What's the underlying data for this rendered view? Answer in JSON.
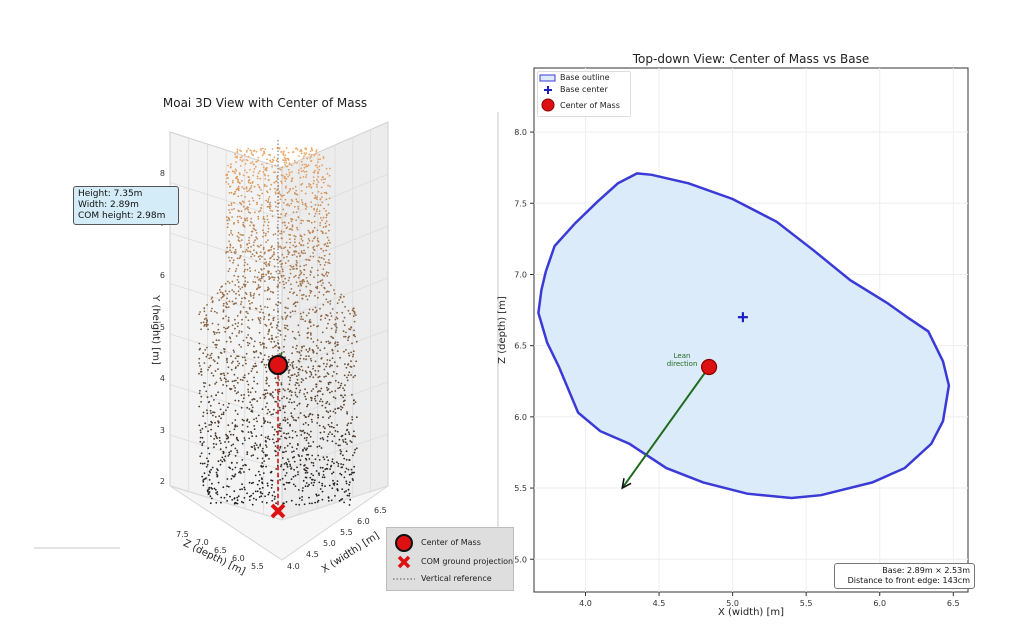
{
  "chart_data": [
    {
      "type": "scatter",
      "title": "Moai 3D View with Center of Mass",
      "xlabel": "X (width) [m]",
      "ylabel": "Y (height) [m]",
      "zlabel": "Z (depth) [m]",
      "x_ticks": [
        "4.0",
        "4.5",
        "5.0",
        "5.5",
        "6.0",
        "6.5"
      ],
      "z_ticks": [
        "7.5",
        "7.0",
        "6.5",
        "6.0",
        "5.5"
      ],
      "y_ticks": [
        "2",
        "3",
        "4",
        "5",
        "6",
        "7",
        "8"
      ],
      "ylim": [
        1.5,
        8.6
      ],
      "info": [
        "Height: 7.35m",
        "Width: 2.89m",
        "COM height: 2.98m"
      ],
      "legend": [
        "Center of Mass",
        "COM ground projection",
        "Vertical reference"
      ],
      "colors": {
        "points_top": "#f0a868",
        "points_bottom": "#1a1a1a",
        "com": "#dd1111",
        "reference": "#555555"
      }
    },
    {
      "type": "line",
      "title": "Top-down View: Center of Mass vs Base",
      "xlabel": "X (width) [m]",
      "ylabel": "Z (depth) [m]",
      "xlim": [
        3.65,
        6.6
      ],
      "ylim": [
        4.77,
        8.45
      ],
      "x_ticks": [
        4.0,
        4.5,
        5.0,
        5.5,
        6.0,
        6.5
      ],
      "y_ticks": [
        5.0,
        5.5,
        6.0,
        6.5,
        7.0,
        7.5,
        8.0
      ],
      "legend": [
        "Base outline",
        "Base center",
        "Center of Mass"
      ],
      "base_outline": [
        [
          4.35,
          7.71
        ],
        [
          4.45,
          7.7
        ],
        [
          4.7,
          7.64
        ],
        [
          5.0,
          7.53
        ],
        [
          5.3,
          7.37
        ],
        [
          5.55,
          7.17
        ],
        [
          5.8,
          6.96
        ],
        [
          6.05,
          6.8
        ],
        [
          6.2,
          6.69
        ],
        [
          6.33,
          6.6
        ],
        [
          6.43,
          6.39
        ],
        [
          6.47,
          6.22
        ],
        [
          6.43,
          5.97
        ],
        [
          6.35,
          5.81
        ],
        [
          6.17,
          5.64
        ],
        [
          5.95,
          5.54
        ],
        [
          5.6,
          5.45
        ],
        [
          5.4,
          5.43
        ],
        [
          5.1,
          5.46
        ],
        [
          4.8,
          5.54
        ],
        [
          4.55,
          5.64
        ],
        [
          4.3,
          5.81
        ],
        [
          4.1,
          5.9
        ],
        [
          3.95,
          6.03
        ],
        [
          3.82,
          6.35
        ],
        [
          3.74,
          6.52
        ],
        [
          3.68,
          6.73
        ],
        [
          3.7,
          6.89
        ],
        [
          3.73,
          7.02
        ],
        [
          3.79,
          7.2
        ],
        [
          3.93,
          7.36
        ],
        [
          4.08,
          7.51
        ],
        [
          4.22,
          7.64
        ]
      ],
      "base_center": [
        5.07,
        6.7
      ],
      "center_of_mass": [
        4.84,
        6.35
      ],
      "lean_arrow_end": [
        4.25,
        5.5
      ],
      "lean_label": "Lean direction",
      "stats": [
        "Base: 2.89m × 2.53m",
        "Distance to front edge: 143cm"
      ],
      "colors": {
        "outline": "#3a3ad6",
        "fill": "#dcebfa",
        "center": "#1e1ec8",
        "com": "#dd1111",
        "arrow": "#1f6b1f"
      }
    }
  ]
}
